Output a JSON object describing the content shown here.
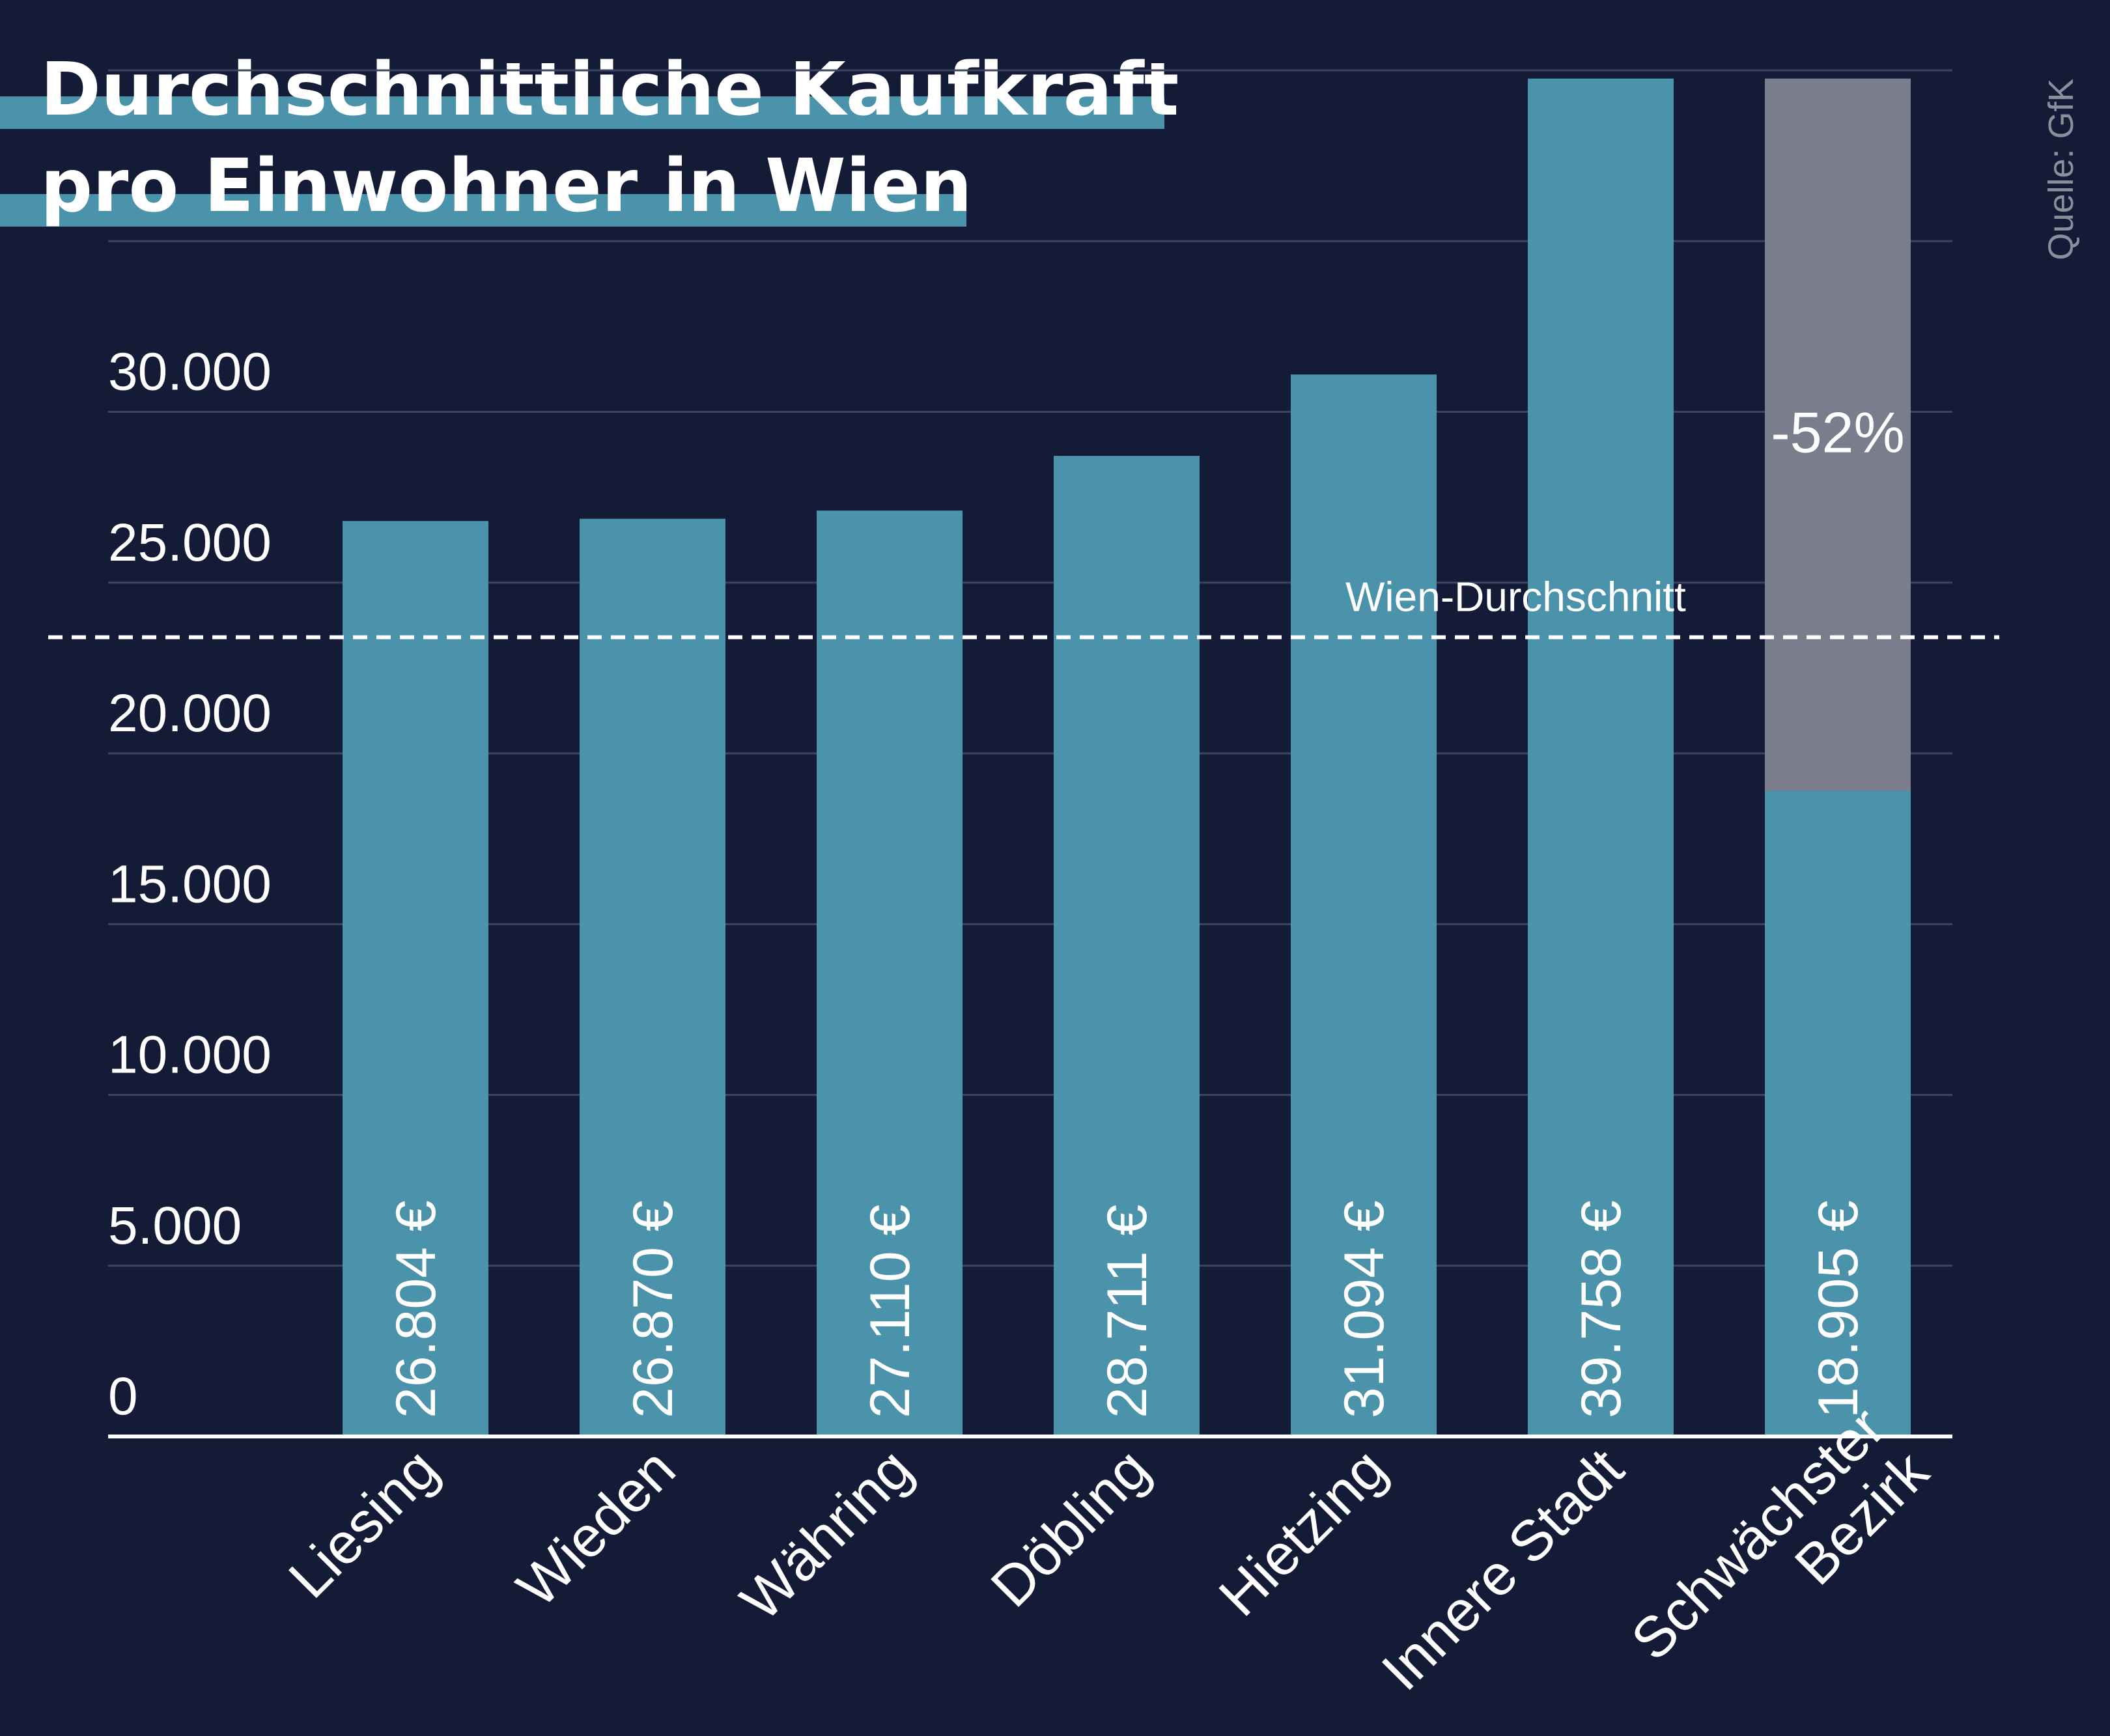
{
  "title": {
    "line1": "Durchschnittliche Kaufkraft",
    "line2": "pro Einwohner in Wien"
  },
  "source": "Quelle: GfK",
  "colors": {
    "background": "#141b36",
    "bar": "#4a93ab",
    "reference_bar": "#7a7d8c",
    "grid": "#3b4463",
    "text": "#ffffff",
    "source_text": "#8a8f9c"
  },
  "chart_data": {
    "type": "bar",
    "title": "Durchschnittliche Kaufkraft pro Einwohner in Wien",
    "xlabel": "",
    "ylabel": "",
    "ylim": [
      0,
      40000
    ],
    "yticks": [
      0,
      5000,
      10000,
      15000,
      20000,
      25000,
      30000
    ],
    "ytick_labels": [
      "0",
      "5.000",
      "10.000",
      "15.000",
      "20.000",
      "25.000",
      "30.000"
    ],
    "grid_lines": [
      5000,
      10000,
      15000,
      20000,
      25000,
      30000,
      35000,
      40000
    ],
    "categories": [
      "Liesing",
      "Wieden",
      "Währing",
      "Döbling",
      "Hietzing",
      "Innere Stadt",
      "Schwächster Bezirk"
    ],
    "values": [
      26804,
      26870,
      27110,
      28711,
      31094,
      39758,
      18905
    ],
    "value_labels": [
      "26.804 €",
      "26.870 €",
      "27.110 €",
      "28.711 €",
      "31.094 €",
      "39.758 €",
      "18.905 €"
    ],
    "reference_bar": {
      "category": "Schwächster Bezirk",
      "value": 39758,
      "label": "-52%"
    },
    "average_line": {
      "value": 23400,
      "label": "Wien-Durchschnitt"
    }
  }
}
